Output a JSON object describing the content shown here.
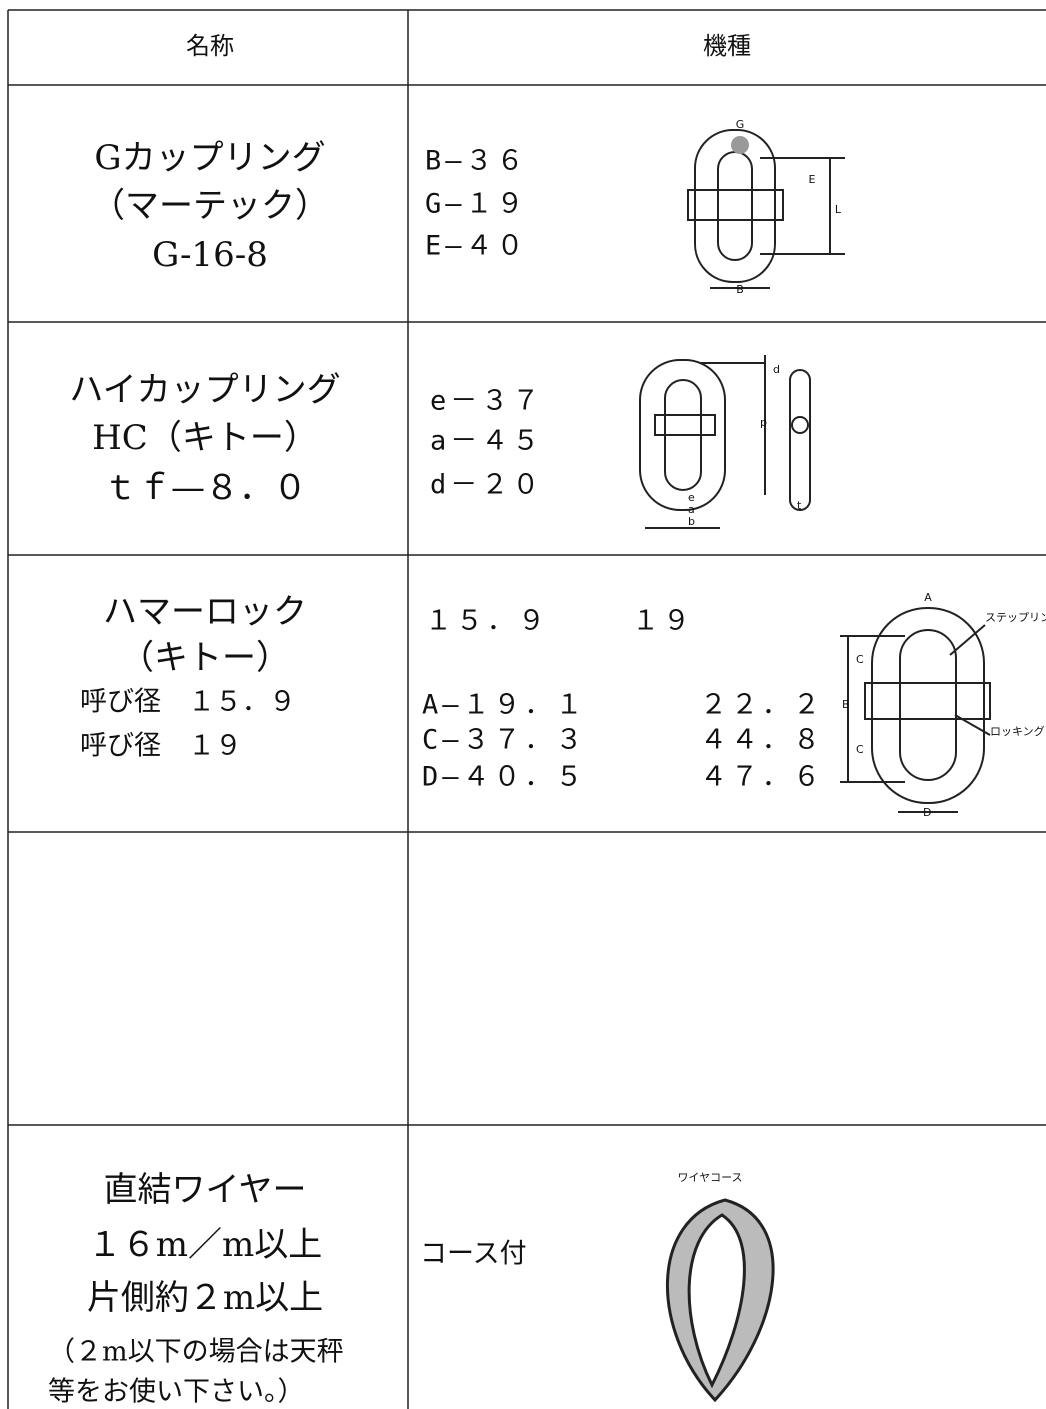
{
  "table": {
    "header": [
      "名称",
      "機種"
    ],
    "rows": [
      {
        "name": [
          "Gカップリング",
          "（マーテック）",
          "G-16-8"
        ],
        "spec": [
          "B—３６",
          "G—１９",
          "E—４０"
        ],
        "figure_labels": [
          "G",
          "E",
          "L",
          "B"
        ]
      },
      {
        "name": [
          "ハイカップリング",
          "HC（キトー）",
          "ｔｆ—８．０"
        ],
        "spec": [
          "e－３７",
          "a－４５",
          "d－２０"
        ],
        "figure_labels": [
          "d",
          "p",
          "e",
          "a",
          "b",
          "t"
        ]
      },
      {
        "name": [
          "ハマーロック",
          "（キトー）",
          "呼び径　１５．９",
          "呼び径　１９"
        ],
        "spec": [
          [
            "１５．９",
            "１９"
          ],
          [
            "A—１９．１",
            "２２．２"
          ],
          [
            "C—３７．３",
            "４４．８"
          ],
          [
            "D—４０．５",
            "４７．６"
          ]
        ],
        "figure_labels": [
          "A",
          "C",
          "B",
          "C",
          "D",
          "ステップリン",
          "ロッキング"
        ]
      },
      {
        "name": [
          "直結ワイヤー",
          "１６m／m以上",
          "片側約２m以上",
          "（２m以下の場合は天秤",
          "等をお使い下さい。）"
        ],
        "spec": [
          "コース付"
        ],
        "figure_labels": [
          "ワイヤコース"
        ]
      }
    ]
  }
}
